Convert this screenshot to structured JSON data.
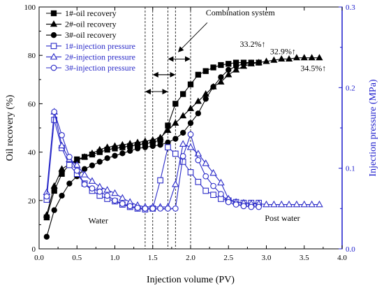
{
  "chart_data": {
    "type": "line",
    "xlabel": "Injection volume (PV)",
    "ylabel_left": "Oil recovery (%)",
    "ylabel_right": "Injection pressure (MPa)",
    "xlim": [
      0.0,
      4.0
    ],
    "ylim_left": [
      0,
      100
    ],
    "ylim_right": [
      0.0,
      0.3
    ],
    "x_ticks": [
      "0.0",
      "0.5",
      "1.0",
      "1.5",
      "2.0",
      "2.5",
      "3.0",
      "3.5",
      "4.0"
    ],
    "y_left_ticks": [
      "0",
      "20",
      "40",
      "60",
      "80",
      "100"
    ],
    "y_right_ticks": [
      "0.0",
      "0.1",
      "0.2",
      "0.3"
    ],
    "grid": false,
    "legend_position": "top-left",
    "colors": {
      "recovery": "#000000",
      "pressure": "#2b2bc8",
      "right_axis": "#1a1acc"
    },
    "series": [
      {
        "name": "1#-oil recovery",
        "axis": "left",
        "marker": "square",
        "filled": true,
        "x": [
          0.1,
          0.2,
          0.3,
          0.4,
          0.5,
          0.6,
          0.7,
          0.8,
          0.9,
          1.0,
          1.1,
          1.2,
          1.3,
          1.4,
          1.5,
          1.6,
          1.7,
          1.8,
          1.9,
          2.0,
          2.1,
          2.2,
          2.3,
          2.4,
          2.5,
          2.6,
          2.7,
          2.8,
          2.9
        ],
        "y": [
          13,
          24,
          31,
          35,
          37,
          38,
          39,
          40,
          41,
          41.5,
          42,
          42.5,
          43,
          43.5,
          44,
          45,
          51,
          60,
          64,
          68,
          72,
          73.5,
          75,
          76,
          76.5,
          77,
          77,
          77,
          77
        ]
      },
      {
        "name": "2#-oil recovery",
        "axis": "left",
        "marker": "triangle",
        "filled": true,
        "x": [
          0.1,
          0.2,
          0.3,
          0.4,
          0.5,
          0.6,
          0.7,
          0.8,
          0.9,
          1.0,
          1.1,
          1.2,
          1.3,
          1.4,
          1.5,
          1.6,
          1.7,
          1.8,
          1.9,
          2.0,
          2.1,
          2.2,
          2.3,
          2.4,
          2.5,
          2.6,
          2.7,
          2.8,
          2.9,
          3.0,
          3.1,
          3.2,
          3.3,
          3.4,
          3.5,
          3.6,
          3.7
        ],
        "y": [
          14,
          26,
          33,
          35,
          36.5,
          38,
          39.5,
          41,
          42,
          42.5,
          43,
          43.5,
          44,
          44.5,
          45,
          46,
          49,
          52,
          55,
          58,
          61,
          64,
          67,
          69,
          72,
          74,
          75.5,
          76.5,
          77,
          77.5,
          78,
          78.5,
          78.5,
          79,
          79,
          79,
          79
        ]
      },
      {
        "name": "3#-oil recovery",
        "axis": "left",
        "marker": "circle",
        "filled": true,
        "x": [
          0.1,
          0.2,
          0.3,
          0.4,
          0.5,
          0.6,
          0.7,
          0.8,
          0.9,
          1.0,
          1.1,
          1.2,
          1.3,
          1.4,
          1.5,
          1.6,
          1.7,
          1.8,
          1.9,
          2.0,
          2.1,
          2.2,
          2.3,
          2.4,
          2.5,
          2.6,
          2.7,
          2.8,
          2.9
        ],
        "y": [
          5,
          16,
          22,
          27,
          30,
          33,
          34.5,
          36,
          37.5,
          38.5,
          39.5,
          40.5,
          41.5,
          42,
          42.5,
          43,
          44,
          45.5,
          48,
          52,
          56,
          62,
          67,
          71,
          74,
          75.5,
          76.5,
          77,
          77
        ]
      },
      {
        "name": "1#-injection pressure",
        "axis": "right",
        "marker": "square",
        "filled": false,
        "x": [
          0.1,
          0.2,
          0.3,
          0.4,
          0.5,
          0.6,
          0.7,
          0.8,
          0.9,
          1.0,
          1.1,
          1.2,
          1.3,
          1.4,
          1.5,
          1.6,
          1.7,
          1.8,
          1.9,
          2.0,
          2.1,
          2.2,
          2.3,
          2.4,
          2.5,
          2.6,
          2.7,
          2.8,
          2.9
        ],
        "y": [
          0.061,
          0.16,
          0.125,
          0.104,
          0.093,
          0.081,
          0.072,
          0.066,
          0.062,
          0.059,
          0.055,
          0.052,
          0.05,
          0.049,
          0.05,
          0.085,
          0.126,
          0.118,
          0.108,
          0.095,
          0.083,
          0.072,
          0.067,
          0.062,
          0.06,
          0.058,
          0.057,
          0.057,
          0.057
        ]
      },
      {
        "name": "2#-injection pressure",
        "axis": "right",
        "marker": "triangle",
        "filled": false,
        "x": [
          0.1,
          0.2,
          0.3,
          0.4,
          0.5,
          0.6,
          0.7,
          0.8,
          0.9,
          1.0,
          1.1,
          1.2,
          1.3,
          1.4,
          1.5,
          1.6,
          1.7,
          1.8,
          1.9,
          2.0,
          2.1,
          2.2,
          2.3,
          2.4,
          2.5,
          2.6,
          2.7,
          2.8,
          2.9,
          3.0,
          3.1,
          3.2,
          3.3,
          3.4,
          3.5,
          3.6,
          3.7
        ],
        "y": [
          0.07,
          0.17,
          0.128,
          0.111,
          0.104,
          0.092,
          0.084,
          0.077,
          0.073,
          0.069,
          0.063,
          0.058,
          0.054,
          0.052,
          0.052,
          0.052,
          0.052,
          0.08,
          0.13,
          0.126,
          0.118,
          0.106,
          0.094,
          0.082,
          0.062,
          0.058,
          0.057,
          0.056,
          0.056,
          0.055,
          0.055,
          0.055,
          0.055,
          0.055,
          0.055,
          0.055,
          0.055
        ]
      },
      {
        "name": "3#-injection pressure",
        "axis": "right",
        "marker": "circle",
        "filled": false,
        "x": [
          0.1,
          0.2,
          0.3,
          0.4,
          0.5,
          0.6,
          0.7,
          0.8,
          0.9,
          1.0,
          1.1,
          1.2,
          1.3,
          1.4,
          1.5,
          1.6,
          1.7,
          1.8,
          1.9,
          2.0,
          2.1,
          2.2,
          2.3,
          2.4,
          2.5,
          2.6,
          2.7,
          2.8,
          2.9
        ],
        "y": [
          0.065,
          0.17,
          0.141,
          0.114,
          0.097,
          0.08,
          0.075,
          0.071,
          0.066,
          0.06,
          0.056,
          0.053,
          0.051,
          0.05,
          0.05,
          0.05,
          0.05,
          0.05,
          0.115,
          0.142,
          0.11,
          0.09,
          0.078,
          0.068,
          0.058,
          0.055,
          0.053,
          0.052,
          0.052
        ]
      }
    ],
    "vertical_lines_x": [
      1.4,
      1.5,
      1.7,
      1.8,
      2.0
    ],
    "annotations": [
      {
        "text": "Combination system",
        "x": 2.2,
        "y": 96.5
      },
      {
        "text": "33.2%↑",
        "x": 2.65,
        "y": 83.5
      },
      {
        "text": "32.9%↑",
        "x": 3.05,
        "y": 80.5
      },
      {
        "text": "34.5%↑",
        "x": 3.45,
        "y": 73.5
      },
      {
        "text": "Water",
        "x": 0.65,
        "y": 10.5
      },
      {
        "text": "Post water",
        "x": 2.98,
        "y": 11.5
      }
    ],
    "combination_arrow": {
      "from_x": 2.22,
      "from_y": 93.5,
      "to_x": 1.84,
      "to_y": 81.5
    },
    "range_arrows": [
      {
        "x1": 1.4,
        "x2": 1.7,
        "y": 65
      },
      {
        "x1": 1.5,
        "x2": 1.8,
        "y": 72
      },
      {
        "x1": 1.7,
        "x2": 2.0,
        "y": 78.5
      }
    ]
  }
}
